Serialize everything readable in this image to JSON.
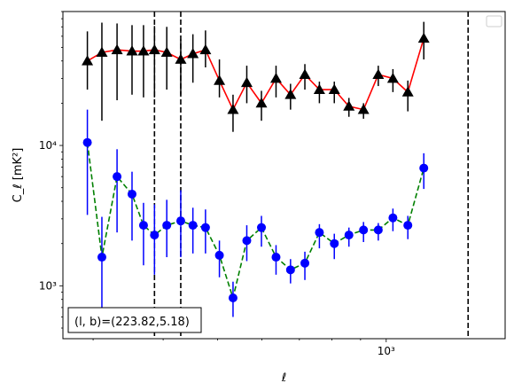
{
  "chart_data": {
    "type": "scatter",
    "xlabel": "ℓ",
    "ylabel": "C_ℓ  [mK²]",
    "xscale": "log",
    "yscale": "log",
    "xlim": [
      265,
      1630
    ],
    "ylim": [
      420,
      90000
    ],
    "x_tick_labels": [
      {
        "value": 1000,
        "label": "10³"
      }
    ],
    "y_tick_labels": [
      {
        "value": 1000,
        "label": "10³"
      },
      {
        "value": 10000,
        "label": "10⁴"
      }
    ],
    "annotation": "(l, b)=(223.82,5.18)",
    "legend": {
      "placement": "top-right",
      "entries": []
    },
    "vlines": [
      386,
      430,
      1400
    ],
    "colors": {
      "upper_line": "#ff0000",
      "upper_marker": "#000000",
      "lower_line": "#008000",
      "lower_marker": "#0000ff"
    },
    "series": [
      {
        "line_style": "solid",
        "marker": "triangle",
        "x": [
          293,
          311,
          331,
          352,
          369,
          386,
          406,
          430,
          452,
          476,
          504,
          533,
          564,
          599,
          636,
          675,
          716,
          760,
          808,
          858,
          911,
          968,
          1028,
          1093,
          1167,
          1241,
          1320,
          1400,
          1485,
          1560
        ],
        "y": [
          40000,
          46000,
          48000,
          47000,
          47000,
          48000,
          46000,
          41000,
          45000,
          48000,
          29000,
          18000,
          28000,
          20000,
          30000,
          23000,
          32000,
          25000,
          25000,
          19000,
          18000,
          32000,
          30000,
          24000,
          58000,
          null,
          null,
          null,
          null,
          null
        ],
        "err_low": [
          15000,
          31000,
          27000,
          24000,
          25000,
          26000,
          21000,
          18000,
          17000,
          12000,
          7000,
          5500,
          8000,
          5000,
          8000,
          5000,
          7000,
          5000,
          5000,
          3000,
          2500,
          5500,
          6000,
          6500,
          17000,
          null,
          null,
          null,
          null,
          null
        ],
        "err_high": [
          25000,
          29000,
          26000,
          25000,
          25000,
          23000,
          24000,
          16000,
          17000,
          18000,
          12000,
          5000,
          9000,
          4500,
          7000,
          4500,
          6000,
          3500,
          3500,
          2800,
          2000,
          5000,
          5000,
          5000,
          18000,
          null,
          null,
          null,
          null,
          null
        ]
      },
      {
        "line_style": "dashed",
        "marker": "circle",
        "x": [
          293,
          311,
          331,
          352,
          369,
          386,
          406,
          430,
          452,
          476,
          504,
          533,
          564,
          599,
          636,
          675,
          716,
          760,
          808,
          858,
          911,
          968,
          1028,
          1093,
          1167,
          1241,
          1320,
          1400,
          1485,
          1560
        ],
        "y": [
          10500,
          1600,
          6000,
          4500,
          2700,
          2300,
          2700,
          2900,
          2700,
          2600,
          1650,
          820,
          2100,
          2600,
          1600,
          1300,
          1450,
          2400,
          2000,
          2300,
          2500,
          2500,
          3050,
          2700,
          6900,
          null,
          null,
          null,
          null,
          null
        ],
        "err_low": [
          7300,
          900,
          3600,
          2400,
          1300,
          1100,
          1100,
          1300,
          1000,
          900,
          500,
          220,
          600,
          700,
          400,
          260,
          350,
          550,
          450,
          400,
          450,
          400,
          600,
          550,
          2000,
          null,
          null,
          null,
          null,
          null
        ],
        "err_high": [
          7500,
          1500,
          3400,
          2000,
          1200,
          1500,
          1400,
          1900,
          900,
          900,
          450,
          250,
          600,
          550,
          350,
          250,
          300,
          350,
          350,
          300,
          350,
          300,
          500,
          450,
          1900,
          null,
          null,
          null,
          null,
          null
        ]
      }
    ]
  }
}
